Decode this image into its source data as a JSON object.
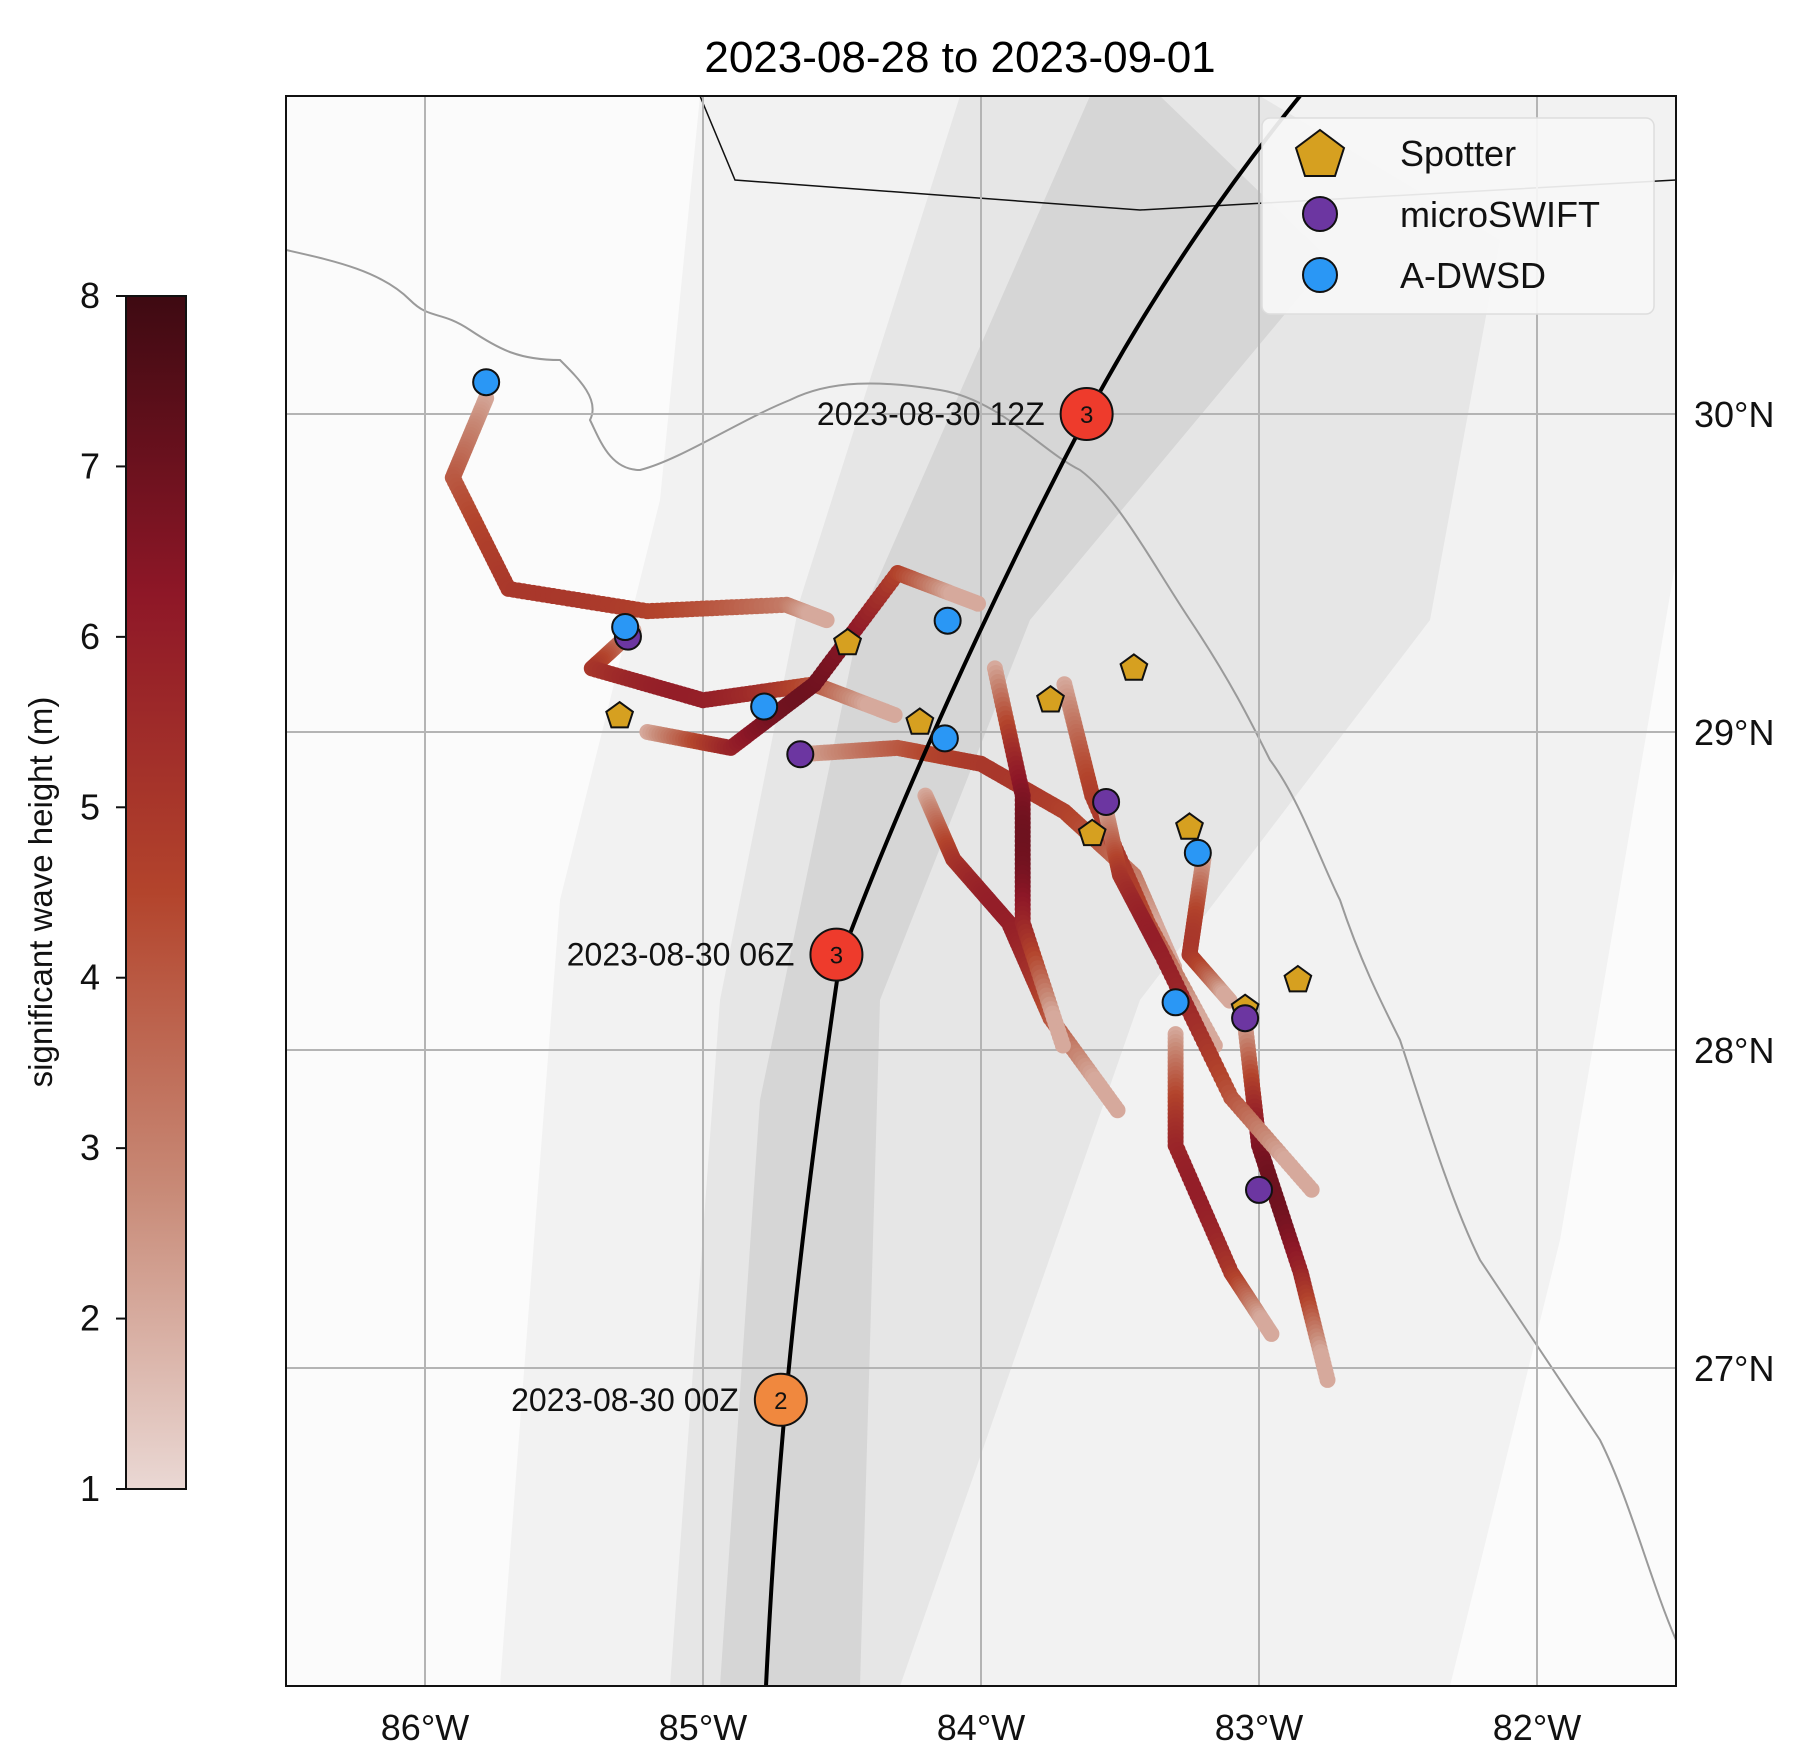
{
  "title": "2023-08-28 to 2023-09-01",
  "colorbar": {
    "label": "significant wave height (m)",
    "min": 1,
    "max": 8,
    "ticks": [
      "1",
      "2",
      "3",
      "4",
      "5",
      "6",
      "7",
      "8"
    ],
    "colors": [
      "#ead8d4",
      "#c88a77",
      "#b3442c",
      "#8e1727",
      "#3e0a12"
    ]
  },
  "map": {
    "lon_range": [
      -86.5,
      -81.5
    ],
    "lat_range": [
      26.0,
      31.0
    ],
    "lon_ticks": [
      {
        "value": -86,
        "label": "86°W"
      },
      {
        "value": -85,
        "label": "85°W"
      },
      {
        "value": -84,
        "label": "84°W"
      },
      {
        "value": -83,
        "label": "83°W"
      },
      {
        "value": -82,
        "label": "82°W"
      }
    ],
    "lat_ticks": [
      {
        "value": 30,
        "label": "30°N"
      },
      {
        "value": 29,
        "label": "29°N"
      },
      {
        "value": 28,
        "label": "28°N"
      },
      {
        "value": 27,
        "label": "27°N"
      }
    ],
    "colors": {
      "land_line": "#9a9a9a",
      "grid": "#b4b4b4",
      "track": "#000000",
      "swath": [
        "#f3f3f3",
        "#e6e6e6",
        "#d6d6d6"
      ]
    }
  },
  "legend": {
    "items": [
      {
        "label": "Spotter",
        "marker": "pentagon",
        "color": "#d6a020"
      },
      {
        "label": "microSWIFT",
        "marker": "circle",
        "color": "#6c36a1"
      },
      {
        "label": "A-DWSD",
        "marker": "circle",
        "color": "#2a97f5"
      }
    ]
  },
  "storm_track": {
    "color": "#000000",
    "points": [
      {
        "time": "2023-08-30 00Z",
        "category": "2",
        "lon": -84.72,
        "lat": 26.9,
        "color": "#f0883e"
      },
      {
        "time": "2023-08-30 06Z",
        "category": "3",
        "lon": -84.52,
        "lat": 28.3,
        "color": "#ee3b2c"
      },
      {
        "time": "2023-08-30 12Z",
        "category": "3",
        "lon": -83.62,
        "lat": 30.0,
        "color": "#ee3b2c"
      }
    ]
  },
  "chart_data": {
    "type": "scatter",
    "title": "2023-08-28 to 2023-09-01",
    "xlabel": "",
    "ylabel": "",
    "xlim": [
      -86.5,
      -81.5
    ],
    "ylim": [
      26.0,
      31.0
    ],
    "colorbar_label": "significant wave height (m)",
    "colorbar_range": [
      1,
      8
    ],
    "series": [
      {
        "name": "Spotter",
        "points": [
          [
            -85.3,
            29.05
          ],
          [
            -84.48,
            29.28
          ],
          [
            -84.22,
            29.03
          ],
          [
            -83.75,
            29.1
          ],
          [
            -83.45,
            29.2
          ],
          [
            -83.6,
            28.68
          ],
          [
            -83.25,
            28.7
          ],
          [
            -83.05,
            28.13
          ],
          [
            -82.86,
            28.22
          ]
        ]
      },
      {
        "name": "microSWIFT",
        "points": [
          [
            -85.27,
            29.3
          ],
          [
            -84.65,
            28.93
          ],
          [
            -83.55,
            28.78
          ],
          [
            -83.05,
            28.1
          ],
          [
            -83.0,
            27.56
          ]
        ]
      },
      {
        "name": "A-DWSD",
        "points": [
          [
            -85.78,
            30.1
          ],
          [
            -85.28,
            29.33
          ],
          [
            -84.78,
            29.08
          ],
          [
            -84.12,
            29.35
          ],
          [
            -84.13,
            28.98
          ],
          [
            -83.22,
            28.62
          ],
          [
            -83.3,
            28.15
          ]
        ]
      }
    ]
  }
}
